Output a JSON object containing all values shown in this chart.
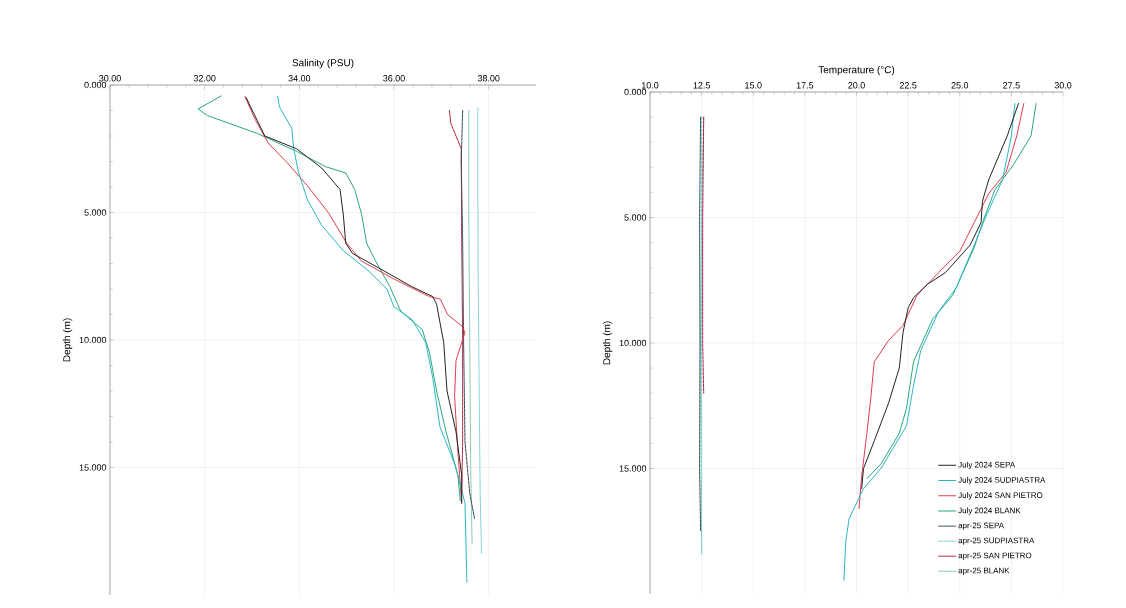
{
  "chart_data": [
    {
      "type": "line",
      "xlabel": "Salinity (PSU)",
      "ylabel": "Depth (m)",
      "xlim": [
        30,
        39
      ],
      "ylim": [
        20,
        0
      ],
      "xticks": [
        {
          "value": 30,
          "label": "30.00"
        },
        {
          "value": 32,
          "label": "32.00"
        },
        {
          "value": 34,
          "label": "34.00"
        },
        {
          "value": 36,
          "label": "36.00"
        },
        {
          "value": 38,
          "label": "38.00"
        }
      ],
      "yticks": [
        {
          "value": 0,
          "label": "0.000"
        },
        {
          "value": 5,
          "label": "5.000"
        },
        {
          "value": 10,
          "label": "10.000"
        },
        {
          "value": 15,
          "label": "15.000"
        }
      ],
      "grid": true,
      "legend": false,
      "series": [
        {
          "color": "#222222",
          "line_style": "solid",
          "x": [
            32.88,
            32.97,
            33.27,
            33.94,
            34.47,
            34.86,
            34.93,
            34.98,
            35.12,
            35.7,
            36.37,
            36.82,
            36.9,
            37.05,
            37.12,
            37.31,
            37.43,
            37.43
          ],
          "values": [
            0.5,
            0.86,
            2.0,
            2.5,
            3.25,
            4.1,
            5.1,
            6.2,
            6.6,
            7.2,
            7.9,
            8.3,
            8.6,
            10.1,
            12.0,
            13.6,
            15.3,
            16.4
          ]
        },
        {
          "color": "#29b6c6",
          "line_style": "solid",
          "x": [
            33.54,
            33.58,
            33.84,
            33.88,
            33.98,
            34.17,
            34.47,
            34.93,
            35.47,
            35.85,
            36.0,
            36.38,
            36.67,
            36.82,
            36.97,
            37.29,
            37.5,
            37.54
          ],
          "values": [
            0.44,
            0.86,
            1.7,
            2.5,
            3.4,
            4.5,
            5.5,
            6.5,
            7.3,
            8.0,
            8.7,
            9.2,
            10.1,
            11.5,
            13.4,
            14.9,
            16.4,
            19.5
          ]
        },
        {
          "color": "#e03c4a",
          "line_style": "solid",
          "x": [
            32.85,
            33.08,
            33.35,
            33.72,
            34.17,
            34.63,
            35.0,
            35.31,
            35.99,
            36.75,
            36.98,
            37.13,
            37.43,
            37.5,
            37.31,
            37.28,
            37.35,
            37.43
          ],
          "values": [
            0.45,
            1.4,
            2.3,
            3.0,
            3.95,
            5.05,
            6.2,
            6.9,
            7.6,
            8.3,
            8.4,
            9.0,
            9.45,
            9.7,
            10.8,
            12.2,
            14.4,
            16.4
          ]
        },
        {
          "color": "#2aa87a",
          "line_style": "solid",
          "x": [
            32.35,
            31.86,
            32.06,
            33.11,
            33.94,
            34.55,
            34.98,
            35.17,
            35.32,
            35.42,
            35.61,
            35.91,
            36.14,
            36.6,
            36.75,
            36.9,
            37.1,
            37.35,
            37.4
          ],
          "values": [
            0.43,
            0.94,
            1.2,
            1.9,
            2.6,
            3.2,
            3.45,
            4.1,
            5.1,
            6.2,
            6.9,
            7.9,
            8.86,
            9.6,
            10.5,
            12.0,
            13.6,
            15.3,
            16.3
          ]
        },
        {
          "color": "#3a4a5a",
          "line_style": "dashed",
          "x": [
            37.45,
            37.42,
            37.45,
            37.47,
            37.5,
            37.6,
            37.7
          ],
          "values": [
            1.0,
            3.0,
            6.0,
            10.0,
            14.0,
            16.0,
            17.0
          ]
        },
        {
          "color": "#7fd3d8",
          "line_style": "dashed",
          "x": [
            37.77,
            37.77,
            37.78,
            37.8,
            37.82,
            37.85
          ],
          "values": [
            0.9,
            4.0,
            8.0,
            12.0,
            16.0,
            18.4
          ]
        },
        {
          "color": "#b0203a",
          "line_style": "dashed",
          "x": [
            37.17,
            37.2,
            37.42,
            37.43,
            37.45,
            37.45,
            37.43
          ],
          "values": [
            1.0,
            1.5,
            2.5,
            6.0,
            10.0,
            14.0,
            16.0
          ]
        },
        {
          "color": "#80c8a8",
          "line_style": "dotted",
          "x": [
            37.58,
            37.58,
            37.6,
            37.62,
            37.65
          ],
          "values": [
            1.0,
            5.0,
            10.0,
            15.0,
            18.0
          ]
        }
      ]
    },
    {
      "type": "line",
      "xlabel": "Temperature (°C)",
      "ylabel": "Depth (m)",
      "xlim": [
        10,
        30
      ],
      "ylim": [
        20,
        0
      ],
      "xticks": [
        {
          "value": 10,
          "label": "10.0"
        },
        12.5,
        {
          "value": 15,
          "label": "15.0"
        },
        17.5,
        {
          "value": 20,
          "label": "20.0"
        },
        22.5,
        {
          "value": 25,
          "label": "25.0"
        },
        27.5,
        {
          "value": 30,
          "label": "30.0"
        }
      ],
      "yticks": [
        {
          "value": 0,
          "label": "0.000"
        },
        {
          "value": 5,
          "label": "5.000"
        },
        {
          "value": 10,
          "label": "10.000"
        },
        {
          "value": 15,
          "label": "15.000"
        }
      ],
      "grid": true,
      "legend": "bottom right",
      "series": [
        {
          "name": "July 2024 SEPA",
          "color": "#222222",
          "line_style": "solid",
          "x": [
            27.84,
            27.3,
            26.4,
            26.1,
            26.03,
            25.5,
            24.3,
            23.45,
            22.76,
            22.5,
            22.25,
            22.07,
            21.55,
            20.86,
            20.34,
            20.25
          ],
          "values": [
            0.46,
            1.75,
            3.5,
            4.35,
            5.2,
            6.1,
            7.2,
            7.65,
            8.2,
            8.6,
            9.6,
            11.0,
            12.4,
            13.9,
            15.0,
            15.8
          ]
        },
        {
          "name": "July 2024 SUDPIASTRA",
          "color": "#29b6c6",
          "line_style": "solid",
          "x": [
            27.67,
            27.5,
            27.07,
            26.3,
            25.7,
            24.83,
            23.97,
            23.11,
            22.76,
            22.42,
            21.2,
            20.34,
            19.64,
            19.48,
            19.39
          ],
          "values": [
            0.46,
            1.75,
            3.5,
            4.9,
            6.1,
            7.8,
            8.76,
            10.3,
            11.7,
            13.3,
            14.98,
            15.8,
            17.0,
            17.9,
            19.45
          ]
        },
        {
          "name": "July 2024 SAN PIETRO",
          "color": "#e03c4a",
          "line_style": "solid",
          "x": [
            28.1,
            27.76,
            27.24,
            26.4,
            25.7,
            25.0,
            23.97,
            22.93,
            22.25,
            21.55,
            20.86,
            20.69,
            20.5,
            20.25,
            20.12
          ],
          "values": [
            0.46,
            1.75,
            3.2,
            4.05,
            5.2,
            6.35,
            7.2,
            8.1,
            9.3,
            9.9,
            10.75,
            12.2,
            13.6,
            15.3,
            16.6
          ]
        },
        {
          "name": "July 2024 BLANK",
          "color": "#2aa87a",
          "line_style": "solid",
          "x": [
            28.7,
            28.45,
            27.6,
            26.7,
            26.1,
            25.7,
            24.66,
            23.69,
            22.76,
            22.42,
            22.07,
            21.2,
            20.51
          ],
          "values": [
            0.46,
            1.75,
            2.9,
            3.9,
            5.2,
            6.2,
            8.1,
            9.04,
            10.75,
            12.6,
            13.6,
            14.8,
            15.4
          ]
        },
        {
          "name": "apr-25 SEPA",
          "color": "#3a4a5a",
          "line_style": "dashed",
          "x": [
            12.45,
            12.4,
            12.42,
            12.4,
            12.45
          ],
          "values": [
            1.0,
            5.0,
            10.0,
            15.0,
            17.5
          ]
        },
        {
          "name": "apr-25 SUDPIASTRA",
          "color": "#7fd3d8",
          "line_style": "dashed",
          "x": [
            12.5,
            12.48,
            12.5,
            12.5,
            12.5
          ],
          "values": [
            1.0,
            5.0,
            10.0,
            15.0,
            18.4
          ]
        },
        {
          "name": "apr-25 SAN PIETRO",
          "color": "#b0203a",
          "line_style": "dashed",
          "x": [
            12.6,
            12.55,
            12.55,
            12.6
          ],
          "values": [
            1.0,
            5.0,
            10.0,
            12.0
          ]
        },
        {
          "name": "apr-25 BLANK",
          "color": "#80c8a8",
          "line_style": "dotted",
          "x": [
            12.6,
            12.5,
            12.45,
            12.48,
            12.5
          ],
          "values": [
            1.0,
            5.0,
            10.0,
            15.0,
            18.4
          ]
        }
      ]
    }
  ]
}
